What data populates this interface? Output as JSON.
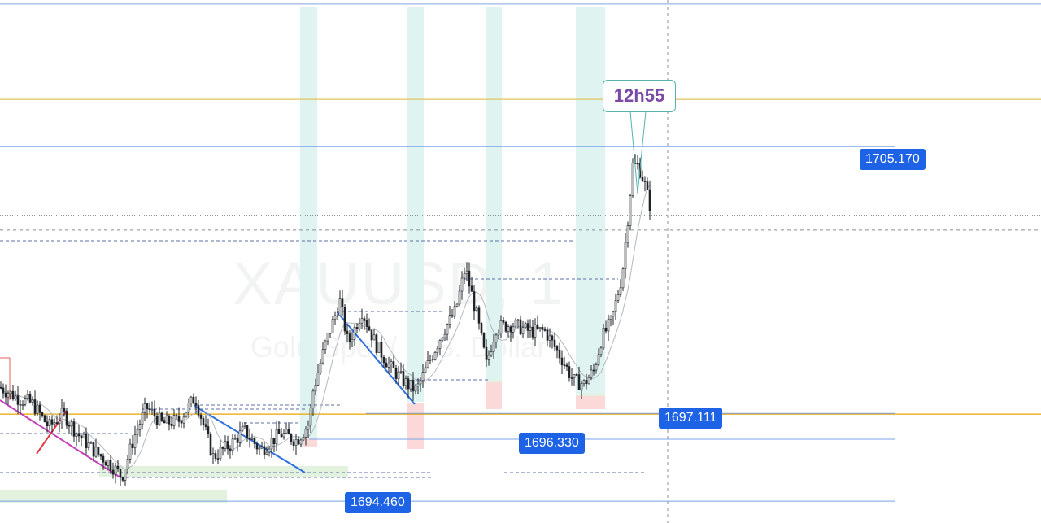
{
  "chart_data": {
    "type": "candlestick",
    "symbol": "XAUUSD, 1",
    "instrument_name": "Gold Spot / U.S. Dollar",
    "ylim": [
      1693.8,
      1709.6
    ],
    "price_lines": [
      {
        "name": "1705.170",
        "value": 1705.17,
        "color": "#1e62e6"
      },
      {
        "name": "1697.111",
        "value": 1697.111,
        "color": "#1e62e6"
      },
      {
        "name": "1696.330",
        "value": 1696.33,
        "color": "#1e62e6"
      },
      {
        "name": "1694.460",
        "value": 1694.46,
        "color": "#1e62e6"
      }
    ],
    "horizontal_levels": [
      {
        "value": 1709.48,
        "color": "#9bb7e8",
        "style": "solid"
      },
      {
        "value": 1706.6,
        "color": "#e2c45a",
        "style": "solid"
      },
      {
        "value": 1697.09,
        "color": "#e8a400",
        "style": "solid"
      },
      {
        "value": 1703.1,
        "color": "#8a8f99",
        "style": "dotted"
      },
      {
        "value": 1702.65,
        "color": "#8a8f99",
        "style": "dashed"
      }
    ],
    "annotations": [
      {
        "text": "12h55",
        "color": "#7b4aa6"
      }
    ],
    "colors": {
      "up": "#1f2328",
      "down": "#1f2328",
      "ma": "#b3b8bf",
      "zone_teal": "#dff3f1",
      "zone_green": "#e3f1df",
      "zone_red": "#fbd9d9"
    },
    "price_anchors": [
      [
        0,
        1697.9
      ],
      [
        20,
        1697.6
      ],
      [
        40,
        1697.4
      ],
      [
        60,
        1696.7
      ],
      [
        78,
        1697.1
      ],
      [
        95,
        1696.5
      ],
      [
        115,
        1696.0
      ],
      [
        135,
        1695.6
      ],
      [
        150,
        1695.2
      ],
      [
        165,
        1696.4
      ],
      [
        180,
        1697.3
      ],
      [
        200,
        1696.8
      ],
      [
        220,
        1696.9
      ],
      [
        240,
        1697.6
      ],
      [
        262,
        1695.8
      ],
      [
        285,
        1696.2
      ],
      [
        300,
        1696.6
      ],
      [
        320,
        1696.0
      ],
      [
        345,
        1696.5
      ],
      [
        365,
        1696.3
      ],
      [
        380,
        1696.8
      ],
      [
        385,
        1697.8
      ],
      [
        400,
        1699.2
      ],
      [
        418,
        1700.5
      ],
      [
        428,
        1699.2
      ],
      [
        445,
        1700.2
      ],
      [
        462,
        1699.2
      ],
      [
        480,
        1698.5
      ],
      [
        500,
        1698.0
      ],
      [
        512,
        1697.8
      ],
      [
        530,
        1698.8
      ],
      [
        545,
        1699.6
      ],
      [
        560,
        1700.2
      ],
      [
        572,
        1701.5
      ],
      [
        585,
        1700.2
      ],
      [
        598,
        1698.6
      ],
      [
        610,
        1699.7
      ],
      [
        630,
        1699.8
      ],
      [
        650,
        1699.6
      ],
      [
        670,
        1699.6
      ],
      [
        690,
        1698.8
      ],
      [
        705,
        1698.1
      ],
      [
        718,
        1698.0
      ],
      [
        730,
        1698.4
      ],
      [
        740,
        1699.4
      ],
      [
        752,
        1699.9
      ],
      [
        765,
        1701.3
      ],
      [
        772,
        1703.0
      ],
      [
        778,
        1704.6
      ],
      [
        785,
        1704.6
      ],
      [
        792,
        1704.1
      ],
      [
        800,
        1703.3
      ]
    ]
  }
}
